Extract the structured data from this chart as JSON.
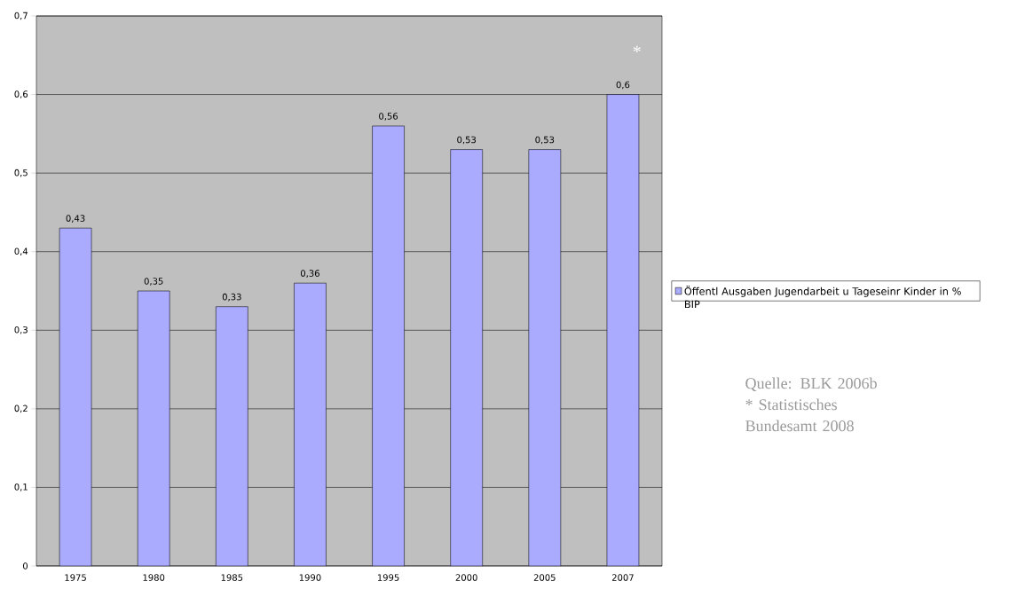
{
  "chart_data": {
    "type": "bar",
    "categories": [
      "1975",
      "1980",
      "1985",
      "1990",
      "1995",
      "2000",
      "2005",
      "2007"
    ],
    "series": [
      {
        "name": "Öffentl Ausgaben Jugendarbeit u Tageseinr Kinder in % BIP",
        "color": "#aaaaff",
        "values": [
          0.43,
          0.35,
          0.33,
          0.36,
          0.56,
          0.53,
          0.53,
          0.6
        ],
        "value_labels": [
          "0,43",
          "0,35",
          "0,33",
          "0,36",
          "0,56",
          "0,53",
          "0,53",
          "0,6"
        ]
      }
    ],
    "ylim": [
      0,
      0.7
    ],
    "yticks": [
      0,
      {
        "value": 0.1,
        "label": "0,1"
      },
      {
        "value": 0.2,
        "label": "0,2"
      },
      {
        "value": 0.3,
        "label": "0,3"
      },
      {
        "value": 0.4,
        "label": "0,4"
      },
      {
        "value": 0.5,
        "label": "0,5"
      },
      {
        "value": 0.6,
        "label": "0,6"
      },
      {
        "value": 0.7,
        "label": "0,7"
      }
    ],
    "grid": "y",
    "legend": "right",
    "annotations": [
      "*",
      "Quelle: BLK 2006b",
      "* Statistisches Bundesamt 2008"
    ]
  }
}
